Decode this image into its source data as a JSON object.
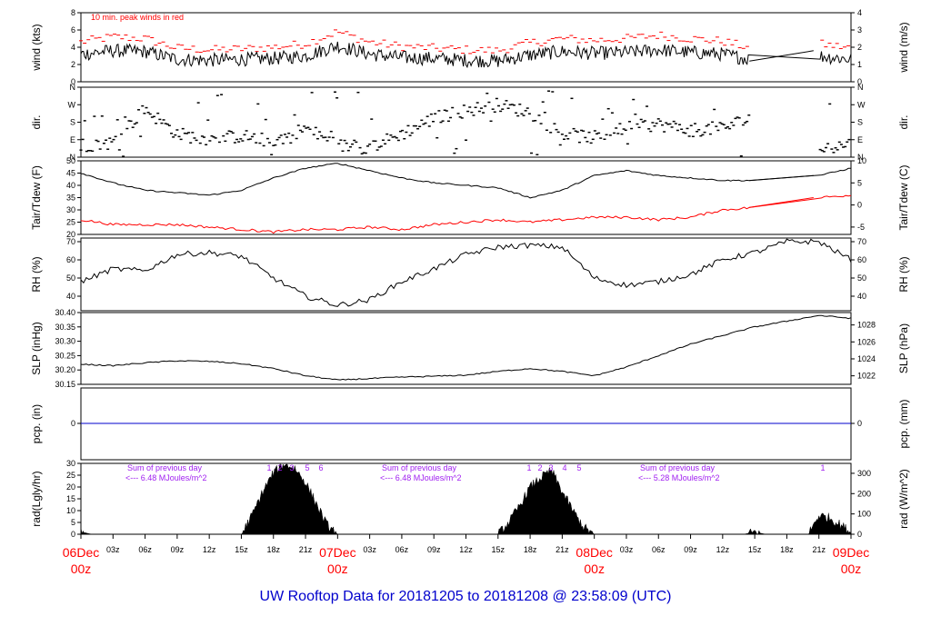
{
  "title": "UW Rooftop Data for 20181205  to  20181208 @ 23:58:09  (UTC)",
  "colors": {
    "primary": "#000000",
    "dewpoint": "#ff0000",
    "peak": "#ff0000",
    "precip": "#0000cc",
    "annotation": "#a020f0",
    "date_label": "#ff0000",
    "title": "#0000cc"
  },
  "x_axis": {
    "hour_ticks": [
      "03z",
      "06z",
      "09z",
      "12z",
      "15z",
      "18z",
      "21z",
      "03z",
      "06z",
      "09z",
      "12z",
      "15z",
      "18z",
      "21z",
      "03z",
      "06z",
      "09z",
      "12z",
      "15z",
      "18z",
      "21z"
    ],
    "date_labels": [
      {
        "date": "06Dec",
        "time": "00z"
      },
      {
        "date": "07Dec",
        "time": "00z"
      },
      {
        "date": "08Dec",
        "time": "00z"
      },
      {
        "date": "09Dec",
        "time": "00z"
      }
    ]
  },
  "chart_data": [
    {
      "type": "line",
      "ylabel_left": "wind (kts)",
      "ylabel_right": "wind (m/s)",
      "annotation": "10 min. peak winds in red",
      "ylim": [
        0,
        8
      ],
      "left_ticks": [
        "0",
        "2",
        "4",
        "6",
        "8"
      ],
      "right_ticks": [
        "0",
        "1",
        "2",
        "3",
        "4"
      ],
      "x": [
        0,
        3,
        6,
        9,
        12,
        15,
        18,
        21,
        24,
        27,
        30,
        33,
        36,
        39,
        42,
        45,
        48,
        51,
        54,
        57,
        60,
        63,
        66,
        69,
        72
      ],
      "series": [
        {
          "values": [
            3.2,
            3.6,
            3.5,
            2.6,
            2.5,
            2.6,
            2.7,
            3.0,
            4.2,
            3.2,
            2.8,
            2.7,
            2.5,
            2.4,
            3.1,
            3.5,
            3.3,
            3.4,
            3.7,
            3.4,
            3.2,
            2.5,
            null,
            3.0,
            2.6
          ]
        },
        {
          "values": [
            4.6,
            5.2,
            5.0,
            3.9,
            3.7,
            3.8,
            4.0,
            4.4,
            5.8,
            4.6,
            4.1,
            3.9,
            3.7,
            3.6,
            4.5,
            5.0,
            4.8,
            5.0,
            5.4,
            5.0,
            4.7,
            3.8,
            null,
            4.4,
            3.9
          ]
        }
      ]
    },
    {
      "type": "scatter",
      "ylabel": "dir.",
      "ylim": [
        0,
        360
      ],
      "left_ticks": [
        "N",
        "E",
        "S",
        "W",
        "N"
      ],
      "right_ticks": [
        "N",
        "E",
        "S",
        "W",
        "N"
      ],
      "x": [
        0,
        3,
        6,
        9,
        12,
        15,
        18,
        21,
        24,
        27,
        30,
        33,
        36,
        39,
        42,
        45,
        48,
        51,
        54,
        57,
        60,
        63,
        66,
        69,
        72
      ],
      "values": [
        60,
        75,
        250,
        120,
        90,
        110,
        80,
        150,
        60,
        50,
        120,
        200,
        240,
        270,
        230,
        120,
        100,
        150,
        170,
        140,
        150,
        210,
        null,
        40,
        70
      ]
    },
    {
      "type": "line",
      "ylabel_left": "Tair/Tdew (F)",
      "ylabel_right": "Tair/Tdew (C)",
      "ylim": [
        20,
        50
      ],
      "left_ticks": [
        "20",
        "25",
        "30",
        "35",
        "40",
        "45",
        "50"
      ],
      "right_ticks": [
        "-5",
        "0",
        "5",
        "10"
      ],
      "x": [
        0,
        3,
        6,
        9,
        12,
        15,
        18,
        21,
        24,
        27,
        30,
        33,
        36,
        39,
        42,
        45,
        48,
        51,
        54,
        57,
        60,
        63,
        66,
        69,
        72
      ],
      "series": [
        {
          "name": "Tair",
          "values": [
            45,
            41,
            38,
            37,
            36,
            38,
            43,
            47,
            49,
            46,
            43,
            41,
            40,
            39,
            35,
            38,
            44,
            46,
            44,
            43,
            42,
            42,
            null,
            44,
            47
          ]
        },
        {
          "name": "Tdew",
          "values": [
            26,
            24,
            24,
            24,
            23,
            22,
            21,
            22,
            22,
            23,
            22,
            24,
            25,
            26,
            25,
            26,
            27,
            27,
            26,
            27,
            30,
            31,
            null,
            35,
            36
          ]
        }
      ]
    },
    {
      "type": "line",
      "ylabel_left": "RH (%)",
      "ylabel_right": "RH (%)",
      "ylim": [
        32,
        72
      ],
      "left_ticks": [
        "40",
        "50",
        "60",
        "70"
      ],
      "right_ticks": [
        "40",
        "50",
        "60",
        "70"
      ],
      "x": [
        0,
        3,
        6,
        9,
        12,
        15,
        18,
        21,
        24,
        27,
        30,
        33,
        36,
        39,
        42,
        45,
        48,
        51,
        54,
        57,
        60,
        63,
        66,
        69,
        72
      ],
      "values": [
        48,
        55,
        54,
        63,
        64,
        62,
        50,
        40,
        35,
        38,
        48,
        55,
        63,
        67,
        68,
        67,
        50,
        46,
        48,
        52,
        60,
        64,
        70,
        70,
        60
      ]
    },
    {
      "type": "line",
      "ylabel_left": "SLP (inHg)",
      "ylabel_right": "SLP (hPa)",
      "ylim": [
        30.15,
        30.4
      ],
      "left_ticks": [
        "30.15",
        "30.20",
        "30.25",
        "30.30",
        "30.35",
        "30.40"
      ],
      "right_ticks": [
        "1022",
        "1024",
        "1026",
        "1028"
      ],
      "x": [
        0,
        3,
        6,
        9,
        12,
        15,
        18,
        21,
        24,
        27,
        30,
        33,
        36,
        39,
        42,
        45,
        48,
        51,
        54,
        57,
        60,
        63,
        66,
        69,
        72
      ],
      "values": [
        30.22,
        30.215,
        30.225,
        30.232,
        30.23,
        30.222,
        30.205,
        30.18,
        30.165,
        30.17,
        30.175,
        30.178,
        30.182,
        30.195,
        30.205,
        30.195,
        30.18,
        30.21,
        30.25,
        30.29,
        30.32,
        30.35,
        30.37,
        30.39,
        30.38
      ]
    },
    {
      "type": "line",
      "ylabel_left": "pcp. (in)",
      "ylabel_right": "pcp. (mm)",
      "left_ticks": [
        "0"
      ],
      "right_ticks": [
        "0"
      ],
      "values": [
        0
      ]
    },
    {
      "type": "area",
      "ylabel_left": "rad(Lgly/hr)",
      "ylabel_right": "rad (W/m^2)",
      "ylim": [
        0,
        30
      ],
      "left_ticks": [
        "0",
        "5",
        "10",
        "15",
        "20",
        "25",
        "30"
      ],
      "right_ticks": [
        "0",
        "100",
        "200",
        "300"
      ],
      "x": [
        0,
        1,
        15,
        16,
        17,
        18,
        19,
        20,
        21,
        22,
        23,
        24,
        39,
        40,
        41,
        42,
        43,
        44,
        45,
        46,
        47,
        48,
        62,
        63,
        64,
        68,
        69,
        70,
        71,
        72
      ],
      "values": [
        1,
        0,
        0,
        8,
        18,
        26,
        30,
        28,
        22,
        13,
        4,
        0,
        0,
        5,
        12,
        20,
        24,
        27,
        18,
        10,
        3,
        0,
        0,
        1,
        0,
        0,
        8,
        7,
        4,
        1
      ],
      "annotations": [
        {
          "label": "Sum of previous day",
          "value": "<--- 6.48 MJoules/m^2"
        },
        {
          "label": "Sum of previous day",
          "value": "<--- 6.48 MJoules/m^2"
        },
        {
          "label": "Sum of previous day",
          "value": "<--- 5.28 MJoules/m^2"
        }
      ],
      "markers": [
        "1",
        "2",
        "3",
        "4",
        "5",
        "6",
        "1",
        "2",
        "3",
        "4",
        "5",
        "1"
      ]
    }
  ]
}
